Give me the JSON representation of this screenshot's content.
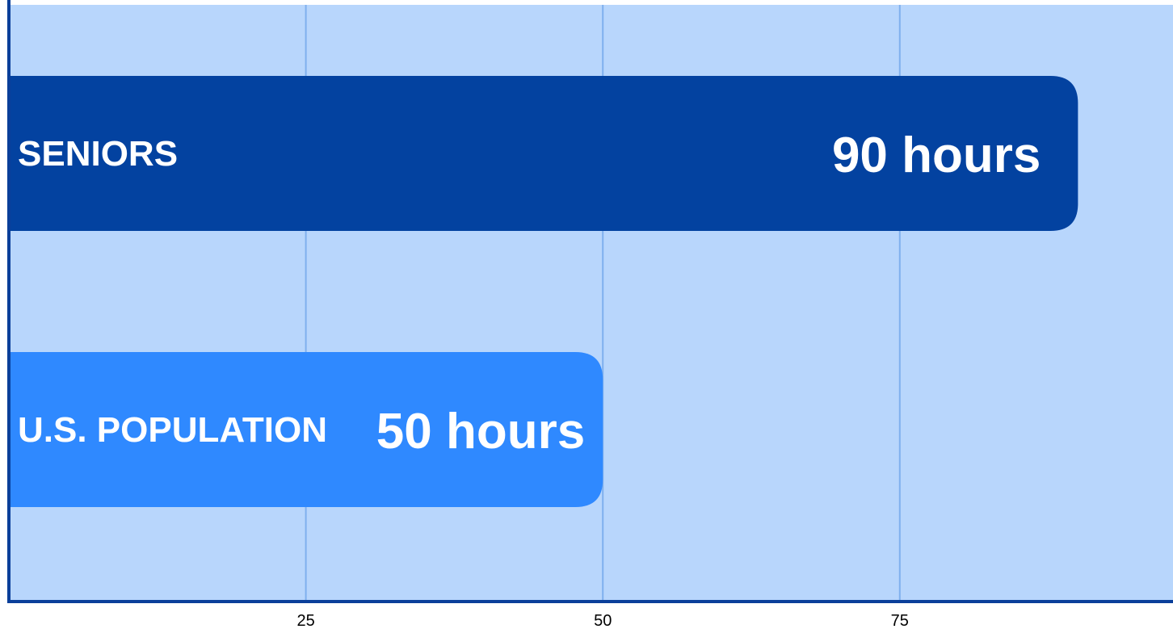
{
  "chart_data": {
    "type": "bar",
    "orientation": "horizontal",
    "categories": [
      "SENIORS",
      "U.S. POPULATION"
    ],
    "values": [
      90,
      50
    ],
    "value_labels": [
      "90 hours",
      "50 hours"
    ],
    "xlim": [
      0,
      98
    ],
    "xticks": [
      25,
      50,
      75
    ],
    "xtick_labels": [
      "25",
      "50",
      "75"
    ],
    "grid": "vertical",
    "title": "",
    "xlabel": "",
    "ylabel": ""
  },
  "colors": {
    "plot_background": "#b8d6fc",
    "grid": "#7fb0ee",
    "axis": "#0a3f9a",
    "bar_seniors": "#0342a0",
    "bar_us_population": "#2f89ff",
    "label_text": "#ffffff",
    "tick_text": "#000000"
  }
}
